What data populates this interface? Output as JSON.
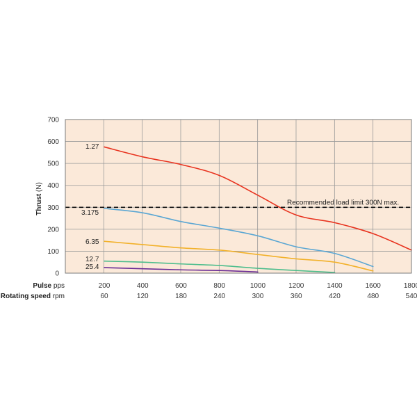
{
  "chart_data": {
    "type": "line",
    "ylabel_bold": "Thrust",
    "ylabel_unit": "(N)",
    "ylim": [
      0,
      700
    ],
    "yticks": [
      "0",
      "100",
      "200",
      "300",
      "400",
      "500",
      "600",
      "700"
    ],
    "x_rows": [
      {
        "label_bold": "Pulse",
        "label_unit": "pps",
        "ticks": [
          "200",
          "400",
          "600",
          "800",
          "1000",
          "1200",
          "1400",
          "1600",
          "1800"
        ]
      },
      {
        "label_bold": "Rotating speed",
        "label_unit": "rpm",
        "ticks": [
          "60",
          "120",
          "180",
          "240",
          "300",
          "360",
          "420",
          "480",
          "540"
        ]
      }
    ],
    "xlim": [
      200,
      1800
    ],
    "grid": true,
    "reference_line": {
      "value": 300,
      "label": "Recommended load limit 300N max."
    },
    "series": [
      {
        "name": "1.27",
        "color": "#e8321e",
        "x": [
          200,
          400,
          600,
          800,
          1000,
          1200,
          1400,
          1600,
          1800
        ],
        "y": [
          575,
          530,
          495,
          445,
          355,
          265,
          230,
          180,
          105
        ]
      },
      {
        "name": "3.175",
        "color": "#5aa6d3",
        "x": [
          200,
          400,
          600,
          800,
          1000,
          1200,
          1400,
          1600
        ],
        "y": [
          295,
          275,
          235,
          205,
          170,
          120,
          90,
          30
        ]
      },
      {
        "name": "6.35",
        "color": "#f2b12a",
        "x": [
          200,
          400,
          600,
          800,
          1000,
          1200,
          1400,
          1600
        ],
        "y": [
          145,
          130,
          115,
          105,
          85,
          65,
          50,
          10
        ]
      },
      {
        "name": "12.7",
        "color": "#4dbd8c",
        "x": [
          200,
          400,
          600,
          800,
          1000,
          1200,
          1400
        ],
        "y": [
          55,
          50,
          42,
          35,
          22,
          12,
          3
        ]
      },
      {
        "name": "25.4",
        "color": "#6a2c95",
        "x": [
          200,
          400,
          600,
          800,
          1000
        ],
        "y": [
          25,
          20,
          15,
          12,
          5
        ]
      }
    ]
  }
}
